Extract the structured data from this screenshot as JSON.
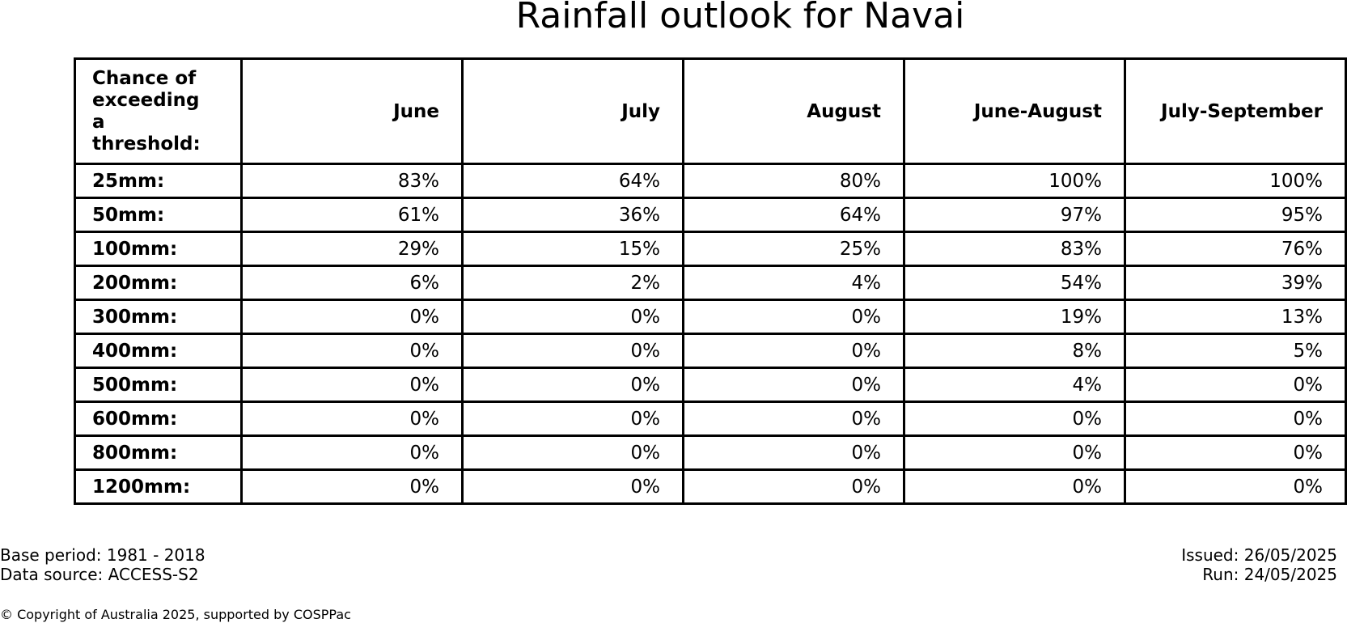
{
  "chart_data": {
    "type": "table",
    "title": "Rainfall outlook for Navai",
    "corner_header": [
      "Chance of",
      "exceeding",
      "a threshold:"
    ],
    "columns": [
      "June",
      "July",
      "August",
      "June-August",
      "July-September"
    ],
    "rows": [
      {
        "threshold": "25mm:",
        "values": [
          "83%",
          "64%",
          "80%",
          "100%",
          "100%"
        ]
      },
      {
        "threshold": "50mm:",
        "values": [
          "61%",
          "36%",
          "64%",
          "97%",
          "95%"
        ]
      },
      {
        "threshold": "100mm:",
        "values": [
          "29%",
          "15%",
          "25%",
          "83%",
          "76%"
        ]
      },
      {
        "threshold": "200mm:",
        "values": [
          "6%",
          "2%",
          "4%",
          "54%",
          "39%"
        ]
      },
      {
        "threshold": "300mm:",
        "values": [
          "0%",
          "0%",
          "0%",
          "19%",
          "13%"
        ]
      },
      {
        "threshold": "400mm:",
        "values": [
          "0%",
          "0%",
          "0%",
          "8%",
          "5%"
        ]
      },
      {
        "threshold": "500mm:",
        "values": [
          "0%",
          "0%",
          "0%",
          "4%",
          "0%"
        ]
      },
      {
        "threshold": "600mm:",
        "values": [
          "0%",
          "0%",
          "0%",
          "0%",
          "0%"
        ]
      },
      {
        "threshold": "800mm:",
        "values": [
          "0%",
          "0%",
          "0%",
          "0%",
          "0%"
        ]
      },
      {
        "threshold": "1200mm:",
        "values": [
          "0%",
          "0%",
          "0%",
          "0%",
          "0%"
        ]
      }
    ]
  },
  "footer": {
    "base_period": "Base period: 1981 - 2018",
    "data_source": "Data source: ACCESS-S2",
    "issued": "Issued: 26/05/2025",
    "run": "Run: 24/05/2025",
    "copyright": "© Copyright of Australia 2025, supported by COSPPac"
  }
}
